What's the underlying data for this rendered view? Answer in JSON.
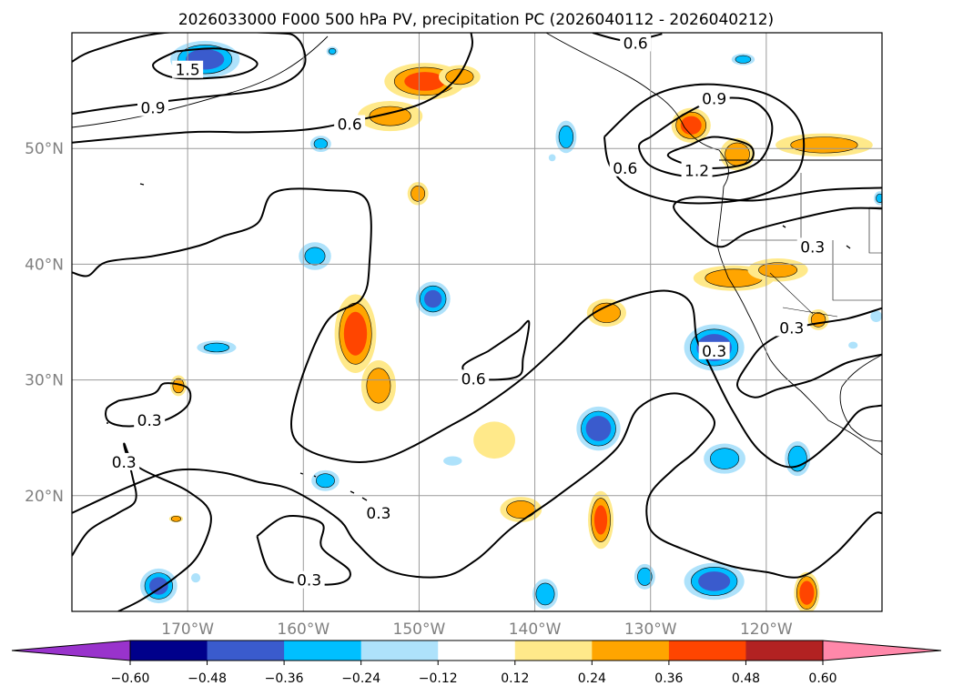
{
  "chart_data": {
    "type": "contour-map",
    "title": "2026033000 F000 500 hPa PV, precipitation PC (2026040112 - 2026040212)",
    "projection": "PlateCarree",
    "lon_range": [
      -180,
      -110
    ],
    "lat_range": [
      10,
      60
    ],
    "xticks": [
      {
        "lon": -170,
        "label": "170°W"
      },
      {
        "lon": -160,
        "label": "160°W"
      },
      {
        "lon": -150,
        "label": "150°W"
      },
      {
        "lon": -140,
        "label": "140°W"
      },
      {
        "lon": -130,
        "label": "130°W"
      },
      {
        "lon": -120,
        "label": "120°W"
      }
    ],
    "yticks": [
      {
        "lat": 20,
        "label": "20°N"
      },
      {
        "lat": 30,
        "label": "30°N"
      },
      {
        "lat": 40,
        "label": "40°N"
      },
      {
        "lat": 50,
        "label": "50°N"
      }
    ],
    "grid": true,
    "colorbar": {
      "orientation": "horizontal",
      "extend": "both",
      "boundaries": [
        -0.6,
        -0.48,
        -0.36,
        -0.24,
        -0.12,
        0.12,
        0.24,
        0.36,
        0.48,
        0.6
      ],
      "tick_labels": [
        "−0.60",
        "−0.48",
        "−0.36",
        "−0.24",
        "−0.12",
        "0.12",
        "0.24",
        "0.36",
        "0.48",
        "0.60"
      ],
      "colors": [
        "#9933cc",
        "#00008b",
        "#3a5bcd",
        "#00bfff",
        "#aee2fb",
        "#ffffff",
        "#ffe98a",
        "#ffa500",
        "#ff4500",
        "#b22222",
        "#ff88aa"
      ]
    },
    "pv_contours": [
      {
        "level": 1.5,
        "label": "1.5",
        "label_lon": -170,
        "label_lat": 56.8,
        "path": [
          [
            -171,
            58.4
          ],
          [
            -167,
            58.6
          ],
          [
            -164,
            57.4
          ],
          [
            -166,
            56.3
          ],
          [
            -171,
            56.1
          ],
          [
            -173,
            57.2
          ],
          [
            -171,
            58.4
          ]
        ]
      },
      {
        "level": 0.9,
        "label": "0.9",
        "label_lon": -173,
        "label_lat": 53.5,
        "path": [
          [
            -180,
            53
          ],
          [
            -176,
            53.6
          ],
          [
            -170,
            54.3
          ],
          [
            -163,
            55.2
          ],
          [
            -160,
            57
          ],
          [
            -160.5,
            59.5
          ],
          [
            -163,
            60
          ],
          [
            -172,
            60
          ],
          [
            -178,
            58.5
          ],
          [
            -180,
            57.5
          ]
        ]
      },
      {
        "level": 0.6,
        "label": "0.6",
        "label_lon": -156,
        "label_lat": 52.1,
        "path": [
          [
            -180,
            50.5
          ],
          [
            -170,
            51.4
          ],
          [
            -165,
            51.4
          ],
          [
            -160,
            51.6
          ],
          [
            -156,
            52.3
          ],
          [
            -150,
            53.8
          ],
          [
            -147,
            55.8
          ],
          [
            -145.5,
            58.5
          ],
          [
            -145.5,
            60
          ]
        ]
      },
      {
        "level": 0.6,
        "label": "0.6",
        "label_lon": -131.3,
        "label_lat": 59.1,
        "path": [
          [
            -135,
            60
          ],
          [
            -132,
            59.3
          ],
          [
            -129,
            59.9
          ]
        ]
      },
      {
        "level": 1.2,
        "label": "1.2",
        "label_lon": -126,
        "label_lat": 48.1,
        "path": [
          [
            -126.6,
            50.3
          ],
          [
            -124.5,
            51
          ],
          [
            -121.5,
            50.3
          ],
          [
            -121.3,
            49
          ],
          [
            -123,
            48.4
          ],
          [
            -126,
            48.4
          ],
          [
            -128.5,
            49.4
          ],
          [
            -126.6,
            50.3
          ]
        ]
      },
      {
        "level": 0.9,
        "label": "0.9",
        "label_lon": -124.5,
        "label_lat": 54.3,
        "path": [
          [
            -130,
            51
          ],
          [
            -127,
            53
          ],
          [
            -124,
            54.3
          ],
          [
            -121,
            54
          ],
          [
            -119.5,
            52
          ],
          [
            -120.5,
            49
          ],
          [
            -123.5,
            47.8
          ],
          [
            -127,
            47.6
          ],
          [
            -130,
            48.5
          ],
          [
            -131,
            50.2
          ],
          [
            -130,
            51
          ]
        ]
      },
      {
        "level": 0.6,
        "label": "0.6",
        "label_lon": -132.2,
        "label_lat": 48.3,
        "path": [
          [
            -134,
            51
          ],
          [
            -131,
            53.8
          ],
          [
            -128,
            55.2
          ],
          [
            -124,
            55.5
          ],
          [
            -119.5,
            54.5
          ],
          [
            -117,
            52
          ],
          [
            -117.3,
            48
          ],
          [
            -121,
            45.8
          ],
          [
            -127,
            45.3
          ],
          [
            -131.5,
            46.5
          ],
          [
            -133.5,
            48.5
          ],
          [
            -134,
            51
          ]
        ]
      },
      {
        "level": 0.3,
        "label": "0.3",
        "label_lon": -116,
        "label_lat": 41.5,
        "path": [
          [
            -110,
            44.8
          ],
          [
            -113,
            44.8
          ],
          [
            -117,
            44
          ],
          [
            -121.5,
            42.8
          ],
          [
            -124,
            41.5
          ],
          [
            -126.3,
            43
          ],
          [
            -128,
            45
          ],
          [
            -126,
            45.8
          ],
          [
            -121,
            45.5
          ],
          [
            -115,
            46.4
          ],
          [
            -110,
            46.6
          ]
        ]
      },
      {
        "level": 0.6,
        "label": "0.6",
        "label_lon": -145.3,
        "label_lat": 30.1,
        "path": [
          [
            -144,
            32.5
          ],
          [
            -141.5,
            34.2
          ],
          [
            -140.5,
            35
          ],
          [
            -141,
            32
          ],
          [
            -141.5,
            30.3
          ],
          [
            -145,
            30.1
          ],
          [
            -146.2,
            31.2
          ],
          [
            -144,
            32.5
          ]
        ]
      },
      {
        "level": 0.3,
        "label": "0.3",
        "label_lon": -173.3,
        "label_lat": 26.5,
        "path": [
          [
            -176,
            28.2
          ],
          [
            -173,
            28.8
          ],
          [
            -172,
            29.7
          ],
          [
            -170,
            29.3
          ],
          [
            -170,
            27.8
          ],
          [
            -172,
            26.5
          ],
          [
            -175,
            26
          ],
          [
            -176.8,
            26.4
          ],
          [
            -177,
            27.5
          ],
          [
            -176,
            28.2
          ]
        ]
      },
      {
        "level": 0.3,
        "label": "0.3",
        "label_lon": -124.5,
        "label_lat": 32.5,
        "path": [
          [
            -180,
            39.3
          ],
          [
            -178.6,
            39
          ],
          [
            -177,
            40.2
          ],
          [
            -173,
            40.7
          ],
          [
            -169,
            41.6
          ],
          [
            -167,
            42.4
          ],
          [
            -164,
            43.5
          ],
          [
            -162.5,
            46.2
          ],
          [
            -158,
            46.4
          ],
          [
            -154.5,
            45.5
          ],
          [
            -154.3,
            40
          ],
          [
            -155,
            37
          ],
          [
            -158,
            35
          ],
          [
            -160.5,
            29
          ],
          [
            -160.8,
            25
          ],
          [
            -157.5,
            23.2
          ],
          [
            -153,
            23.2
          ],
          [
            -147,
            26.2
          ],
          [
            -144,
            28
          ],
          [
            -141,
            30.2
          ],
          [
            -138,
            32.9
          ],
          [
            -135,
            35.7
          ],
          [
            -131.5,
            37.2
          ],
          [
            -128.5,
            37.7
          ],
          [
            -126.5,
            36.6
          ],
          [
            -126,
            33.5
          ],
          [
            -125,
            31.5
          ],
          [
            -123,
            27.5
          ],
          [
            -120.5,
            23.8
          ],
          [
            -117.5,
            22.5
          ],
          [
            -114,
            25
          ],
          [
            -112,
            27.3
          ],
          [
            -110,
            27.8
          ]
        ]
      },
      {
        "level": 0.3,
        "label": "0.3",
        "label_lon": -153.5,
        "label_lat": 18.5,
        "path": [
          [
            -180,
            18.5
          ],
          [
            -175,
            20.8
          ],
          [
            -171,
            22.2
          ],
          [
            -167,
            22
          ],
          [
            -164,
            21.2
          ],
          [
            -161,
            20.5
          ],
          [
            -157,
            18
          ],
          [
            -155.5,
            16
          ],
          [
            -152.5,
            13.5
          ],
          [
            -148,
            13
          ],
          [
            -145,
            14.5
          ],
          [
            -142,
            17.2
          ],
          [
            -138,
            20
          ],
          [
            -133,
            24
          ],
          [
            -131,
            27.6
          ],
          [
            -127.5,
            28.8
          ],
          [
            -124.5,
            26.5
          ],
          [
            -126,
            24
          ],
          [
            -128,
            22.3
          ],
          [
            -130,
            20.2
          ],
          [
            -130.3,
            18
          ],
          [
            -129.5,
            16.5
          ],
          [
            -127,
            15.3
          ],
          [
            -123,
            13.9
          ],
          [
            -120,
            13.4
          ],
          [
            -117,
            13
          ],
          [
            -114,
            15
          ],
          [
            -111,
            18.2
          ],
          [
            -110,
            18.5
          ]
        ]
      },
      {
        "level": 0.3,
        "label": "0.3",
        "label_lon": -159.5,
        "label_lat": 12.7,
        "path": [
          [
            -164,
            16.5
          ],
          [
            -163,
            13.6
          ],
          [
            -161,
            12.5
          ],
          [
            -157,
            12.4
          ],
          [
            -156,
            13.5
          ],
          [
            -158.4,
            15.5
          ],
          [
            -158.4,
            17.6
          ],
          [
            -161.5,
            18.2
          ],
          [
            -164,
            16.5
          ]
        ]
      },
      {
        "level": 0.3,
        "label": "0.3",
        "label_lon": -175.5,
        "label_lat": 22.9,
        "path": [
          [
            -180,
            14.8
          ],
          [
            -178.5,
            17
          ],
          [
            -176,
            18.5
          ],
          [
            -174.5,
            19.6
          ],
          [
            -174.8,
            21.8
          ],
          [
            -175.5,
            24.5
          ],
          [
            -174.3,
            22.5
          ],
          [
            -170,
            20.4
          ],
          [
            -168,
            18.3
          ],
          [
            -169,
            15
          ],
          [
            -171,
            13
          ],
          [
            -174,
            11
          ],
          [
            -176,
            10
          ]
        ]
      },
      {
        "level": 0.3,
        "label": "0.3",
        "label_lon": -117.8,
        "label_lat": 34.5,
        "path": [
          [
            -110,
            36.2
          ],
          [
            -113,
            35.3
          ],
          [
            -117,
            34.6
          ],
          [
            -120,
            33.2
          ],
          [
            -121.5,
            31.5
          ],
          [
            -122.5,
            29.5
          ],
          [
            -121,
            28.5
          ],
          [
            -119,
            29.2
          ],
          [
            -116,
            30
          ],
          [
            -113,
            31.5
          ],
          [
            -110,
            32.2
          ]
        ]
      }
    ],
    "precip_blobs": [
      {
        "lon": -168.5,
        "lat": 57.7,
        "rx": 3.0,
        "ry": 1.6,
        "value": -0.42
      },
      {
        "lon": -158.5,
        "lat": 50.4,
        "rx": 0.9,
        "ry": 0.7,
        "value": -0.26
      },
      {
        "lon": -152.5,
        "lat": 52.8,
        "rx": 2.8,
        "ry": 1.3,
        "value": 0.26
      },
      {
        "lon": -149.5,
        "lat": 55.8,
        "rx": 3.5,
        "ry": 1.6,
        "value": 0.38
      },
      {
        "lon": -146.5,
        "lat": 56.2,
        "rx": 1.8,
        "ry": 1.0,
        "value": 0.28
      },
      {
        "lon": -159,
        "lat": 40.7,
        "rx": 1.4,
        "ry": 1.2,
        "value": -0.25
      },
      {
        "lon": -167.5,
        "lat": 32.8,
        "rx": 1.7,
        "ry": 0.6,
        "value": -0.26
      },
      {
        "lon": -170.8,
        "lat": 29.5,
        "rx": 0.7,
        "ry": 0.9,
        "value": 0.3
      },
      {
        "lon": -155.5,
        "lat": 34,
        "rx": 1.8,
        "ry": 3.4,
        "value": 0.42
      },
      {
        "lon": -153.5,
        "lat": 29.5,
        "rx": 1.5,
        "ry": 2.2,
        "value": 0.3
      },
      {
        "lon": -148.8,
        "lat": 37,
        "rx": 1.5,
        "ry": 1.5,
        "value": -0.38
      },
      {
        "lon": -150.1,
        "lat": 46.1,
        "rx": 0.9,
        "ry": 1.0,
        "value": 0.28
      },
      {
        "lon": -143.5,
        "lat": 24.8,
        "rx": 1.8,
        "ry": 1.6,
        "value": 0.2
      },
      {
        "lon": -158.1,
        "lat": 21.3,
        "rx": 1.2,
        "ry": 0.9,
        "value": -0.28
      },
      {
        "lon": -147.1,
        "lat": 23,
        "rx": 0.8,
        "ry": 0.4,
        "value": -0.2
      },
      {
        "lon": -141.2,
        "lat": 18.8,
        "rx": 1.8,
        "ry": 1.1,
        "value": 0.3
      },
      {
        "lon": -137.3,
        "lat": 51,
        "rx": 0.9,
        "ry": 1.4,
        "value": -0.3
      },
      {
        "lon": -138.5,
        "lat": 49.2,
        "rx": 0.3,
        "ry": 0.3,
        "value": -0.2
      },
      {
        "lon": -133.8,
        "lat": 35.8,
        "rx": 1.7,
        "ry": 1.2,
        "value": 0.32
      },
      {
        "lon": -124.5,
        "lat": 32.8,
        "rx": 2.6,
        "ry": 2.0,
        "value": -0.45
      },
      {
        "lon": -134.5,
        "lat": 25.8,
        "rx": 1.9,
        "ry": 1.9,
        "value": -0.44
      },
      {
        "lon": -134.3,
        "lat": 17.9,
        "rx": 1.1,
        "ry": 2.5,
        "value": 0.38
      },
      {
        "lon": -130.5,
        "lat": 13,
        "rx": 0.9,
        "ry": 1.1,
        "value": -0.3
      },
      {
        "lon": -124.5,
        "lat": 12.6,
        "rx": 2.6,
        "ry": 1.6,
        "value": -0.4
      },
      {
        "lon": -123.6,
        "lat": 23.2,
        "rx": 1.8,
        "ry": 1.3,
        "value": -0.3
      },
      {
        "lon": -117.3,
        "lat": 23.2,
        "rx": 1.1,
        "ry": 1.5,
        "value": -0.35
      },
      {
        "lon": -116.5,
        "lat": 11.6,
        "rx": 1.1,
        "ry": 1.8,
        "value": 0.44
      },
      {
        "lon": -126.5,
        "lat": 52,
        "rx": 1.7,
        "ry": 1.5,
        "value": 0.4
      },
      {
        "lon": -122.5,
        "lat": 49.5,
        "rx": 1.5,
        "ry": 1.4,
        "value": 0.32
      },
      {
        "lon": -115,
        "lat": 50.3,
        "rx": 4.2,
        "ry": 1.0,
        "value": 0.3
      },
      {
        "lon": -122.8,
        "lat": 38.8,
        "rx": 3.5,
        "ry": 1.1,
        "value": 0.32
      },
      {
        "lon": -119,
        "lat": 39.5,
        "rx": 2.6,
        "ry": 1.0,
        "value": 0.26
      },
      {
        "lon": -115.5,
        "lat": 35.2,
        "rx": 0.9,
        "ry": 0.9,
        "value": 0.3
      },
      {
        "lon": -122,
        "lat": 57.7,
        "rx": 1.0,
        "ry": 0.5,
        "value": -0.28
      },
      {
        "lon": -110.5,
        "lat": 35.5,
        "rx": 0.5,
        "ry": 0.5,
        "value": -0.2
      },
      {
        "lon": -112.5,
        "lat": 33,
        "rx": 0.4,
        "ry": 0.3,
        "value": -0.2
      },
      {
        "lon": -110.2,
        "lat": 45.7,
        "rx": 0.5,
        "ry": 0.6,
        "value": -0.25
      },
      {
        "lon": -157.5,
        "lat": 58.4,
        "rx": 0.5,
        "ry": 0.4,
        "value": -0.25
      },
      {
        "lon": -172.5,
        "lat": 12.2,
        "rx": 1.6,
        "ry": 1.5,
        "value": -0.38
      },
      {
        "lon": -169.3,
        "lat": 12.9,
        "rx": 0.4,
        "ry": 0.4,
        "value": -0.2
      },
      {
        "lon": -139.1,
        "lat": 11.5,
        "rx": 1.1,
        "ry": 1.3,
        "value": -0.34
      },
      {
        "lon": -171,
        "lat": 18,
        "rx": 0.6,
        "ry": 0.3,
        "value": 0.3
      }
    ]
  }
}
